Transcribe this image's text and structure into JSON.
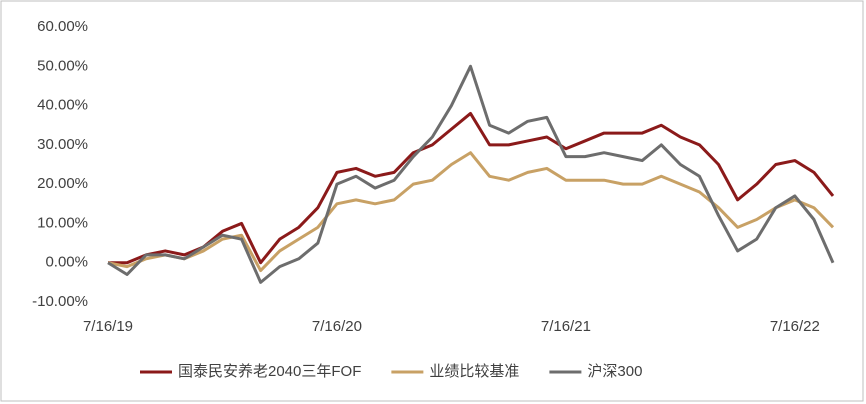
{
  "chart_data": {
    "type": "line",
    "categories": [
      "7/16/19",
      null,
      null,
      null,
      null,
      null,
      null,
      null,
      null,
      null,
      null,
      null,
      "7/16/20",
      null,
      null,
      null,
      null,
      null,
      null,
      null,
      null,
      null,
      null,
      null,
      "7/16/21",
      null,
      null,
      null,
      null,
      null,
      null,
      null,
      null,
      null,
      null,
      null,
      "7/16/22",
      null,
      null
    ],
    "series": [
      {
        "name": "国泰民安养老2040三年FOF",
        "color": "#8b1a1a",
        "values": [
          0,
          0,
          2,
          3,
          2,
          4,
          8,
          10,
          0,
          6,
          9,
          14,
          23,
          24,
          22,
          23,
          28,
          30,
          34,
          38,
          30,
          30,
          31,
          32,
          29,
          31,
          33,
          33,
          33,
          35,
          32,
          30,
          25,
          16,
          20,
          25,
          26,
          23,
          17
        ]
      },
      {
        "name": "业绩比较基准",
        "color": "#c8a165",
        "values": [
          0,
          -1,
          1,
          2,
          1,
          3,
          6,
          7,
          -2,
          3,
          6,
          9,
          15,
          16,
          15,
          16,
          20,
          21,
          25,
          28,
          22,
          21,
          23,
          24,
          21,
          21,
          21,
          20,
          20,
          22,
          20,
          18,
          14,
          9,
          11,
          14,
          16,
          14,
          9
        ]
      },
      {
        "name": "沪深300",
        "color": "#6d6d6d",
        "values": [
          0,
          -3,
          2,
          2,
          1,
          4,
          7,
          6,
          -5,
          -1,
          1,
          5,
          20,
          22,
          19,
          21,
          27,
          32,
          40,
          50,
          35,
          33,
          36,
          37,
          27,
          27,
          28,
          27,
          26,
          30,
          25,
          22,
          12,
          3,
          6,
          14,
          17,
          11,
          0
        ]
      }
    ],
    "ylim": [
      -10,
      60
    ],
    "yticks": [
      {
        "value": -10,
        "label": "-10.00%"
      },
      {
        "value": 0,
        "label": "0.00%"
      },
      {
        "value": 10,
        "label": "10.00%"
      },
      {
        "value": 20,
        "label": "20.00%"
      },
      {
        "value": 30,
        "label": "30.00%"
      },
      {
        "value": 40,
        "label": "40.00%"
      },
      {
        "value": 50,
        "label": "50.00%"
      },
      {
        "value": 60,
        "label": "60.00%"
      }
    ],
    "legend": "bottom"
  }
}
